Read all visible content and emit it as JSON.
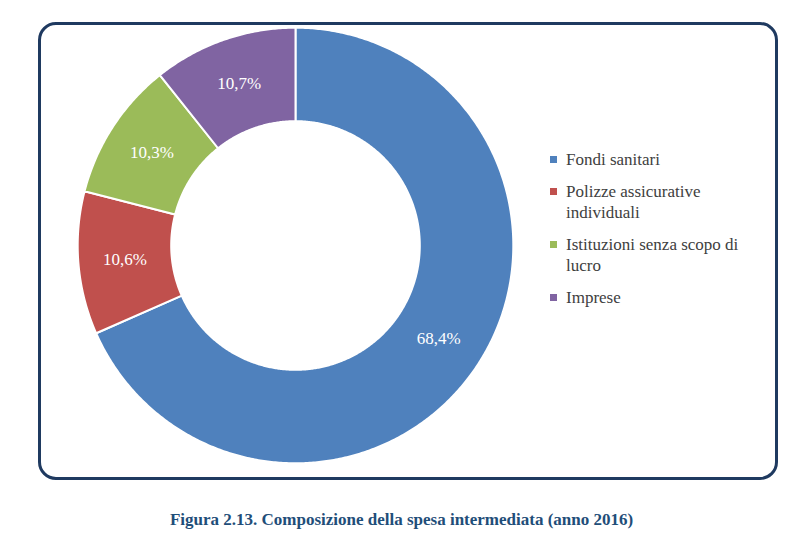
{
  "chart_data": {
    "type": "pie",
    "title": "Figura 2.13. Composizione della spesa intermediata (anno 2016)",
    "categories": [
      "Fondi sanitari",
      "Polizze assicurative individuali",
      "Istituzioni senza scopo di lucro",
      "Imprese"
    ],
    "values": [
      68.4,
      10.6,
      10.3,
      10.7
    ],
    "value_labels": [
      "68,4%",
      "10,6%",
      "10,3%",
      "10,7%"
    ],
    "colors": [
      "#4f81bd",
      "#c0504d",
      "#9bbb59",
      "#8064a2"
    ],
    "data_labels": true,
    "legend": "right"
  }
}
